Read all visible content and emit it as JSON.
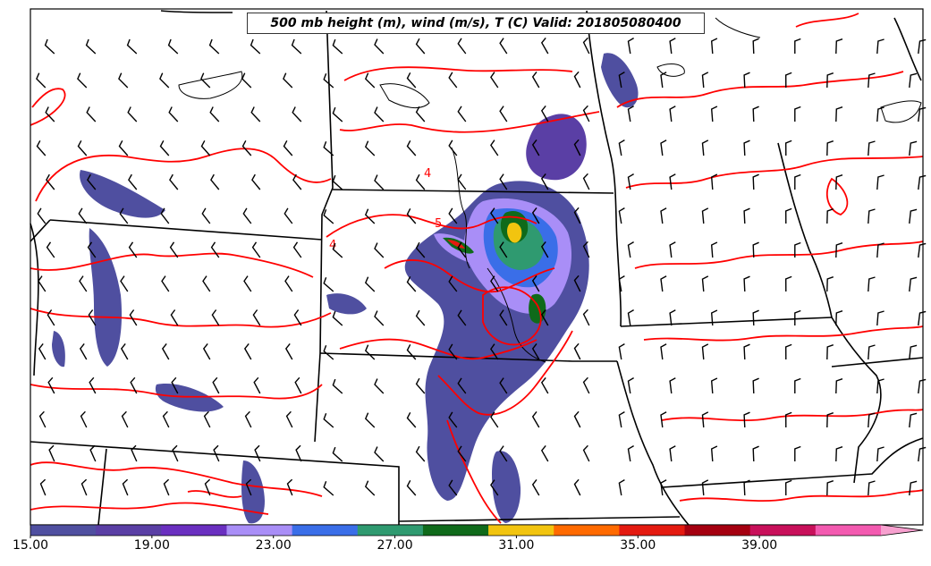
{
  "title": "500 mb height (m), wind (m/s), T (C) Valid: 201805080400",
  "contour_labels": [
    "4",
    "5",
    "4"
  ],
  "colorbar": {
    "tick_labels": [
      "15.00",
      "19.00",
      "23.00",
      "27.00",
      "31.00",
      "35.00",
      "39.00"
    ],
    "tick_values": [
      15,
      19,
      23,
      27,
      31,
      35,
      39
    ],
    "range": [
      15,
      43
    ],
    "levels": [
      15,
      17,
      19,
      21,
      23,
      25,
      27,
      29,
      31,
      33,
      35,
      37,
      39,
      41,
      43
    ],
    "colors": [
      "#4f4fa0",
      "#5a3fa5",
      "#6a2fc0",
      "#a98ef7",
      "#3a6ee8",
      "#2f9a70",
      "#0f6a1a",
      "#f2c40f",
      "#ff6a00",
      "#e41a10",
      "#a50010",
      "#c8105a",
      "#f35ab0",
      "#f7a0cf"
    ]
  },
  "colors": {
    "contour": "#ff0000",
    "borders": "#000000",
    "barbs": "#000000"
  }
}
